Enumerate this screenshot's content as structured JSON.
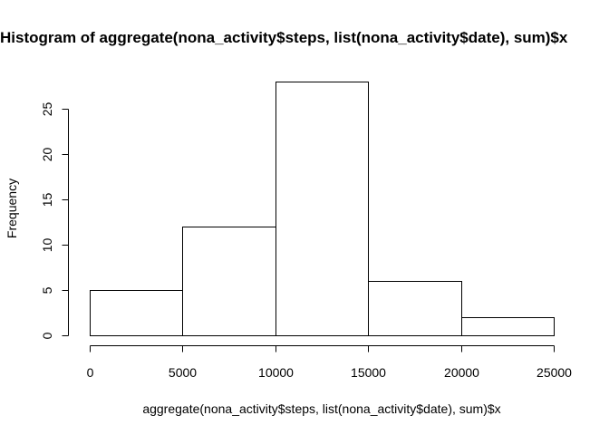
{
  "chart_data": {
    "type": "bar",
    "title": "Histogram of aggregate(nona_activity$steps, list(nona_activity$date), sum)$x",
    "xlabel": "aggregate(nona_activity$steps, list(nona_activity$date), sum)$x",
    "ylabel": "Frequency",
    "bins": [
      {
        "from": 0,
        "to": 5000,
        "count": 5
      },
      {
        "from": 5000,
        "to": 10000,
        "count": 12
      },
      {
        "from": 10000,
        "to": 15000,
        "count": 28
      },
      {
        "from": 15000,
        "to": 20000,
        "count": 6
      },
      {
        "from": 20000,
        "to": 25000,
        "count": 2
      }
    ],
    "xlim": [
      0,
      25000
    ],
    "ylim": [
      0,
      28
    ],
    "x_ticks": [
      "0",
      "5000",
      "10000",
      "15000",
      "20000",
      "25000"
    ],
    "y_ticks": [
      "0",
      "5",
      "10",
      "15",
      "20",
      "25"
    ],
    "grid": false,
    "colors": {
      "bar_fill": "#ffffff",
      "bar_stroke": "#000000"
    }
  }
}
